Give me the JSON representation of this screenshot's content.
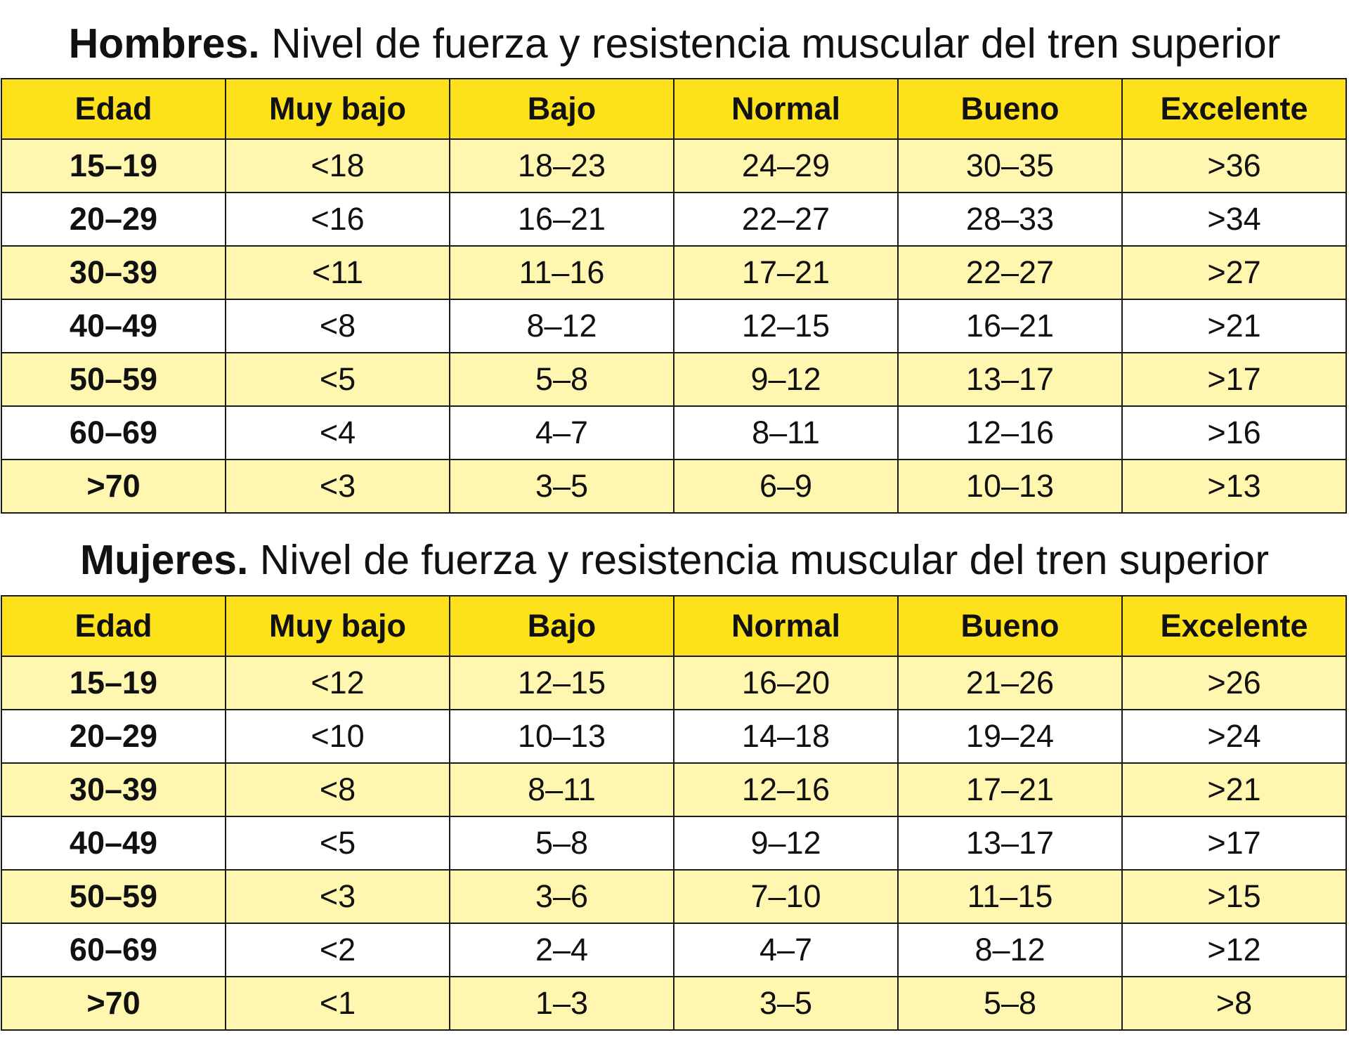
{
  "colors": {
    "header_bg": "#fde11a",
    "odd_row_bg": "#fff6b0",
    "even_row_bg": "#ffffff",
    "border": "#1a1a1a"
  },
  "columns": [
    "Edad",
    "Muy bajo",
    "Bajo",
    "Normal",
    "Bueno",
    "Excelente"
  ],
  "hombres": {
    "title_bold": "Hombres.",
    "title_rest": " Nivel de fuerza y resistencia muscular del tren superior",
    "rows": [
      [
        "15–19",
        "<18",
        "18–23",
        "24–29",
        "30–35",
        ">36"
      ],
      [
        "20–29",
        "<16",
        "16–21",
        "22–27",
        "28–33",
        ">34"
      ],
      [
        "30–39",
        "<11",
        "11–16",
        "17–21",
        "22–27",
        ">27"
      ],
      [
        "40–49",
        "<8",
        "8–12",
        "12–15",
        "16–21",
        ">21"
      ],
      [
        "50–59",
        "<5",
        "5–8",
        "9–12",
        "13–17",
        ">17"
      ],
      [
        "60–69",
        "<4",
        "4–7",
        "8–11",
        "12–16",
        ">16"
      ],
      [
        ">70",
        "<3",
        "3–5",
        "6–9",
        "10–13",
        ">13"
      ]
    ]
  },
  "mujeres": {
    "title_bold": "Mujeres.",
    "title_rest": " Nivel de fuerza y resistencia muscular del tren superior",
    "rows": [
      [
        "15–19",
        "<12",
        "12–15",
        "16–20",
        "21–26",
        ">26"
      ],
      [
        "20–29",
        "<10",
        "10–13",
        "14–18",
        "19–24",
        ">24"
      ],
      [
        "30–39",
        "<8",
        "8–11",
        "12–16",
        "17–21",
        ">21"
      ],
      [
        "40–49",
        "<5",
        "5–8",
        "9–12",
        "13–17",
        ">17"
      ],
      [
        "50–59",
        "<3",
        "3–6",
        "7–10",
        "11–15",
        ">15"
      ],
      [
        "60–69",
        "<2",
        "2–4",
        "4–7",
        "8–12",
        ">12"
      ],
      [
        ">70",
        "<1",
        "1–3",
        "3–5",
        "5–8",
        ">8"
      ]
    ]
  }
}
